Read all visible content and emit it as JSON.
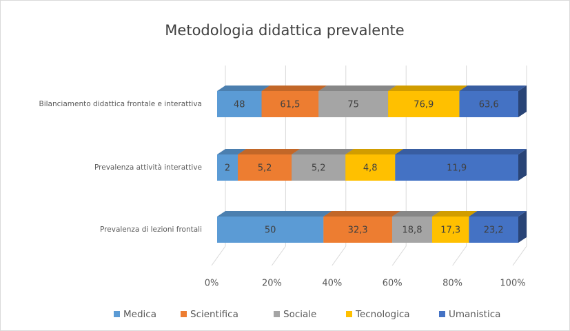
{
  "chart_data": {
    "type": "bar_stacked_percent",
    "title": "Metodologia didattica prevalente",
    "categories": [
      "Bilanciamento  didattica frontale e interattiva",
      "Prevalenza attività interattive",
      "Prevalenza di lezioni frontali"
    ],
    "series": [
      {
        "name": "Medica",
        "color": "#5b9bd5",
        "values": [
          48,
          2,
          50
        ],
        "value_labels": [
          "48",
          "2",
          "50"
        ]
      },
      {
        "name": "Scientifica",
        "color": "#ed7d31",
        "values": [
          61.5,
          5.2,
          32.3
        ],
        "value_labels": [
          "61,5",
          "5,2",
          "32,3"
        ]
      },
      {
        "name": "Sociale",
        "color": "#a5a5a5",
        "values": [
          75,
          5.2,
          18.8
        ],
        "value_labels": [
          "75",
          "5,2",
          "18,8"
        ]
      },
      {
        "name": "Tecnologica",
        "color": "#ffc000",
        "values": [
          76.9,
          4.8,
          17.3
        ],
        "value_labels": [
          "76,9",
          "4,8",
          "17,3"
        ]
      },
      {
        "name": "Umanistica",
        "color": "#4472c4",
        "values": [
          63.6,
          11.9,
          23.2
        ],
        "value_labels": [
          "63,6",
          "11,9",
          "23,2"
        ]
      }
    ],
    "xlim": [
      0,
      100
    ],
    "xticks": [
      {
        "value": 0,
        "label": "0%"
      },
      {
        "value": 20,
        "label": "20%"
      },
      {
        "value": 40,
        "label": "40%"
      },
      {
        "value": 60,
        "label": "60%"
      },
      {
        "value": 80,
        "label": "80%"
      },
      {
        "value": 100,
        "label": "100%"
      }
    ],
    "grid": true,
    "legend": "bottom"
  }
}
